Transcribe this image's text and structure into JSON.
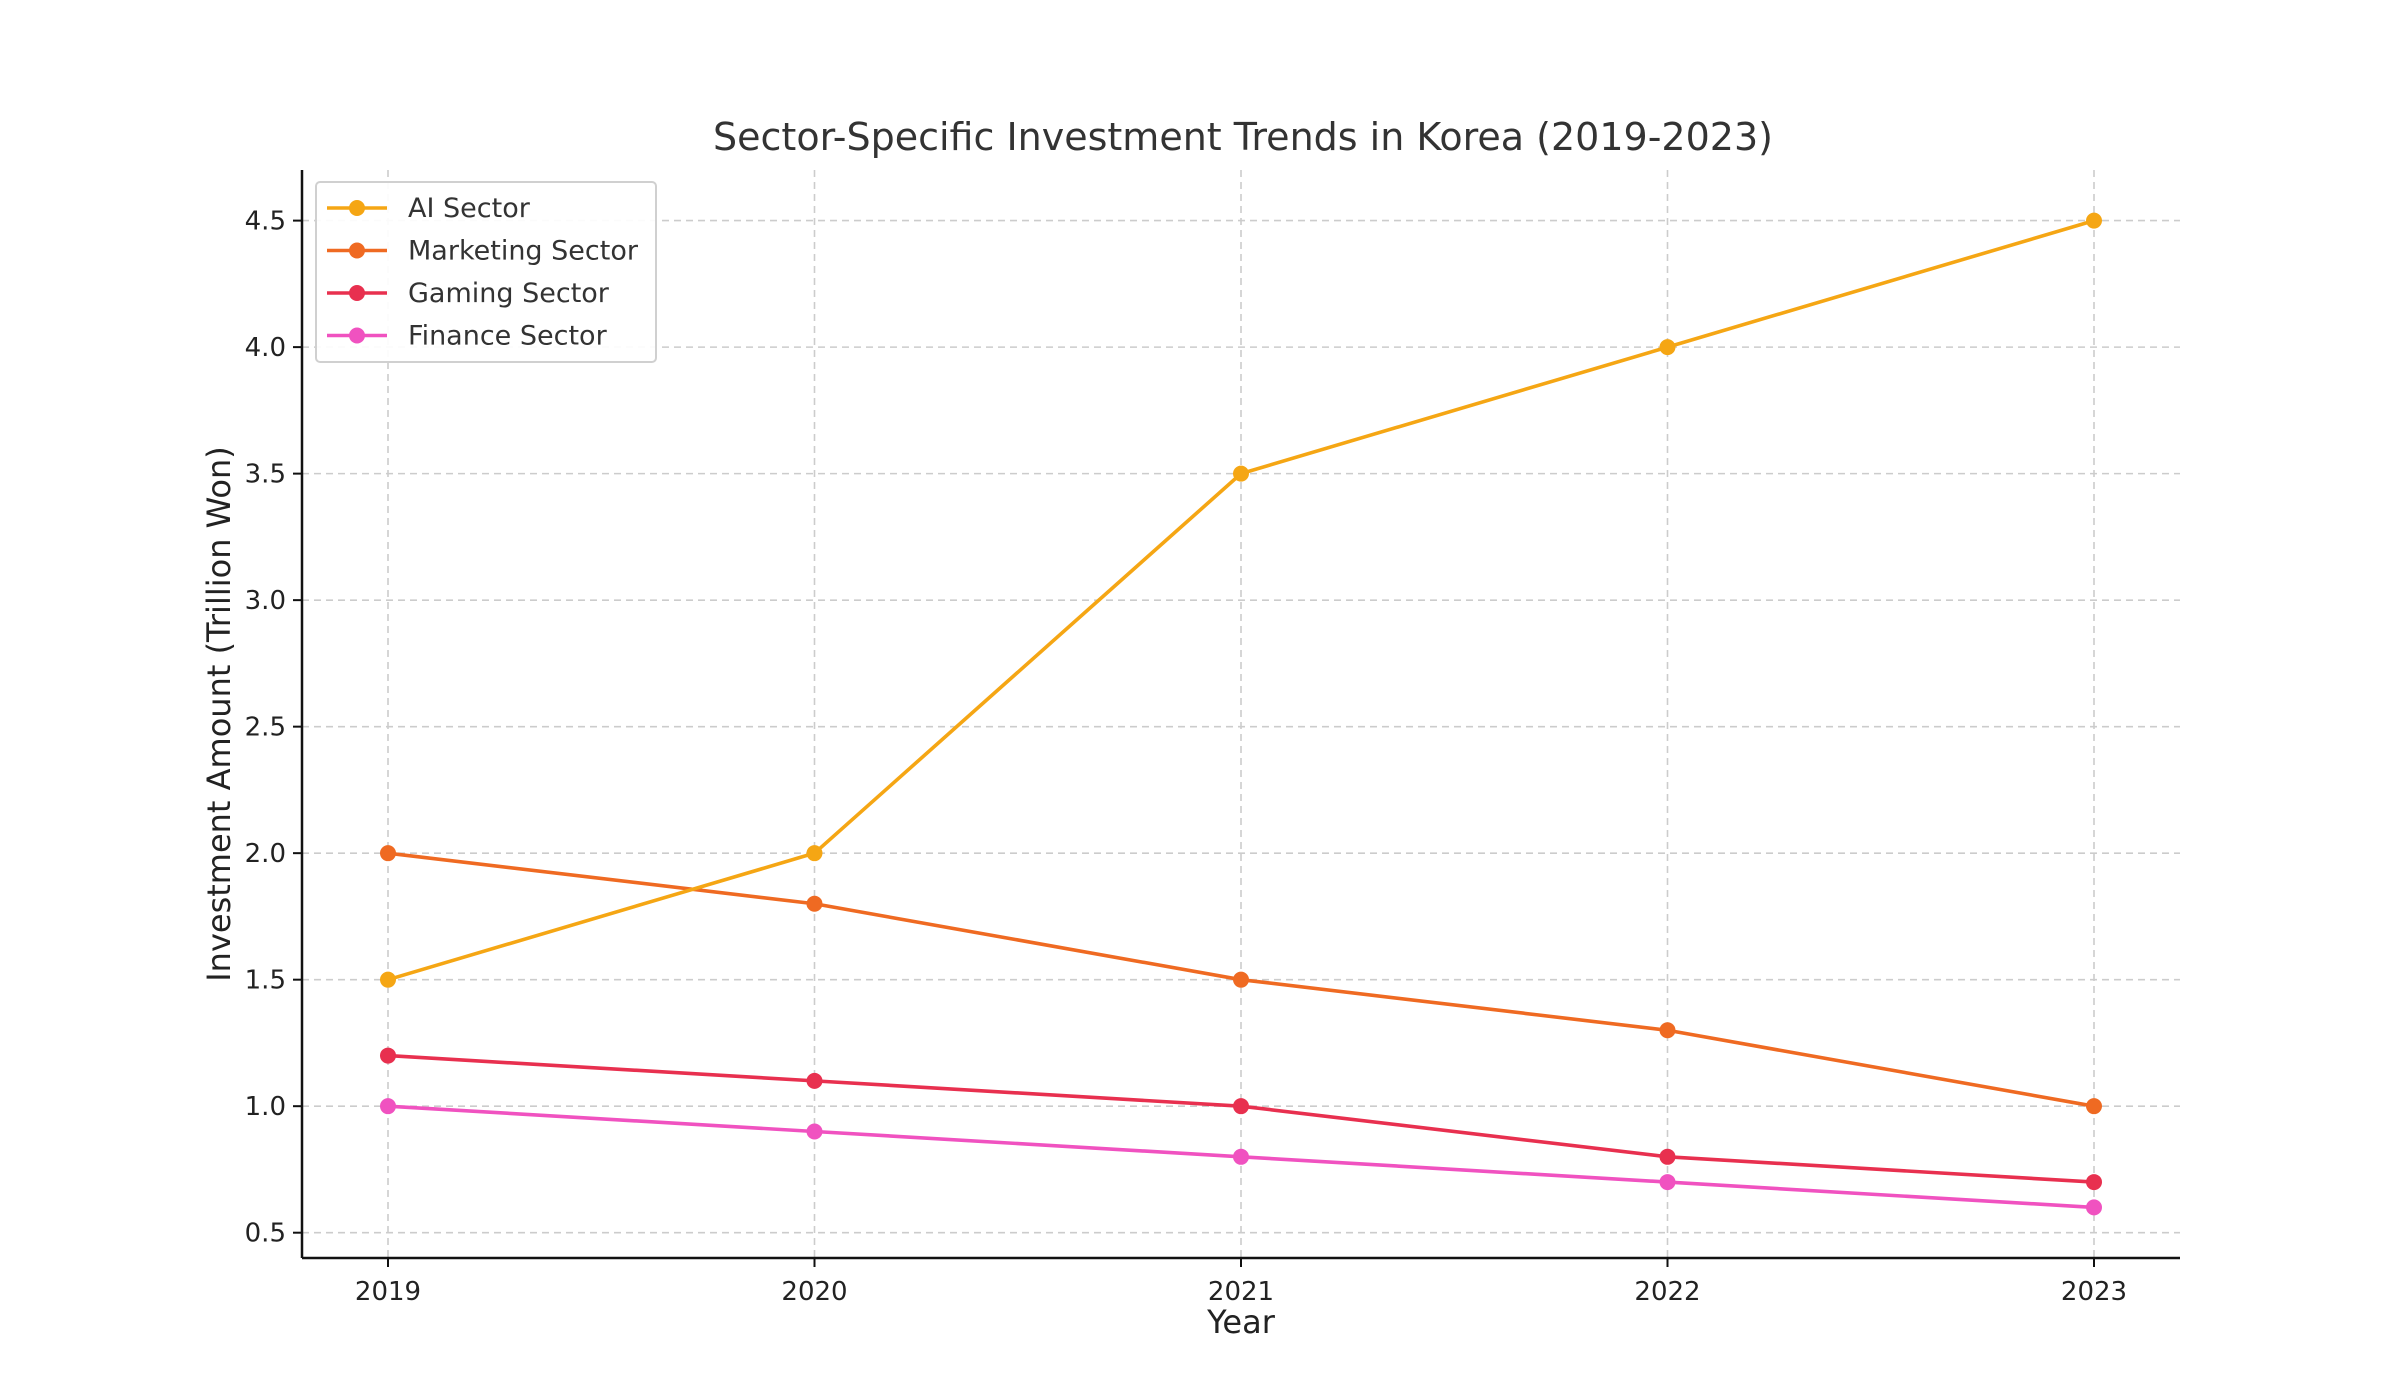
{
  "chart_data": {
    "type": "line",
    "title": "Sector-Specific Investment Trends in Korea (2019-2023)",
    "xlabel": "Year",
    "ylabel": "Investment Amount (Trillion Won)",
    "x": [
      "2019",
      "2020",
      "2021",
      "2022",
      "2023"
    ],
    "ylim": [
      0.4,
      4.7
    ],
    "yticks": [
      0.5,
      1.0,
      1.5,
      2.0,
      2.5,
      3.0,
      3.5,
      4.0,
      4.5
    ],
    "ytick_labels": [
      "0.5",
      "1.0",
      "1.5",
      "2.0",
      "2.5",
      "3.0",
      "3.5",
      "4.0",
      "4.5"
    ],
    "grid": true,
    "legend_position": "top-left",
    "series": [
      {
        "name": "AI Sector",
        "color": "#f5a614",
        "values": [
          1.5,
          2.0,
          3.5,
          4.0,
          4.5
        ]
      },
      {
        "name": "Marketing Sector",
        "color": "#ef6a22",
        "values": [
          2.0,
          1.8,
          1.5,
          1.3,
          1.0
        ]
      },
      {
        "name": "Gaming Sector",
        "color": "#e8304f",
        "values": [
          1.2,
          1.1,
          1.0,
          0.8,
          0.7
        ]
      },
      {
        "name": "Finance Sector",
        "color": "#f052c0",
        "values": [
          1.0,
          0.9,
          0.8,
          0.7,
          0.6
        ]
      }
    ]
  }
}
